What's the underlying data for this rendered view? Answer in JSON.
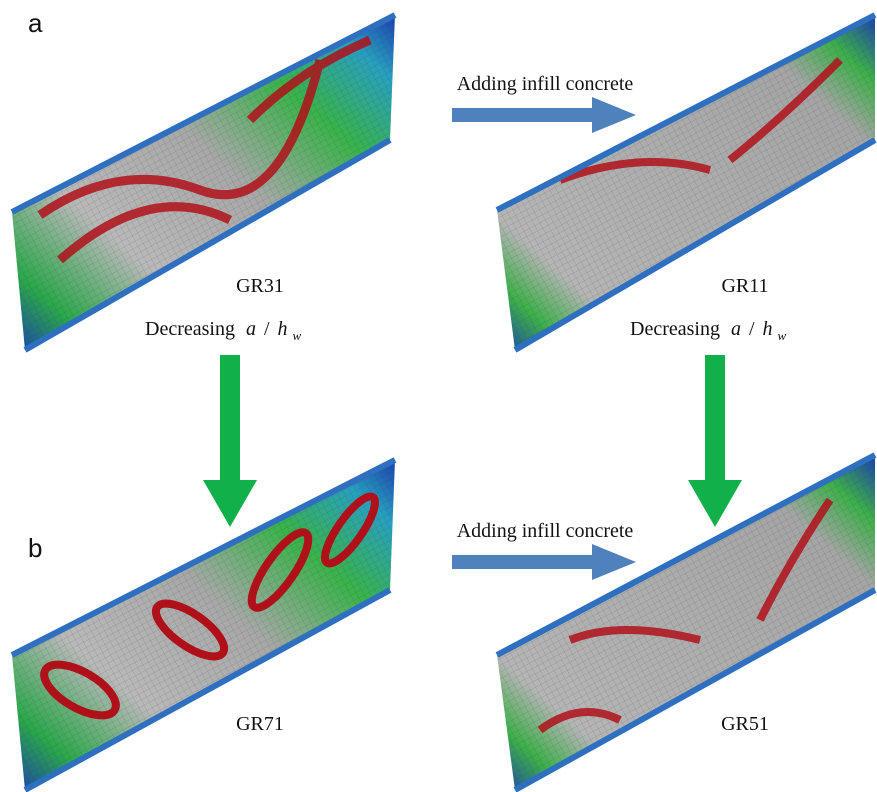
{
  "panels": [
    {
      "label": "a"
    },
    {
      "label": "b"
    }
  ],
  "models": [
    {
      "name": "GR31"
    },
    {
      "name": "GR11"
    },
    {
      "name": "GR71"
    },
    {
      "name": "GR51"
    }
  ],
  "horizontal_arrows": [
    {
      "label": "Adding infill concrete"
    },
    {
      "label": "Adding infill concrete"
    }
  ],
  "vertical_arrows": [
    {
      "label": "Decreasing",
      "symbol_a": "a",
      "slash": "/",
      "symbol_h": "h",
      "subscript": "w"
    },
    {
      "label": "Decreasing",
      "symbol_a": "a",
      "slash": "/",
      "symbol_h": "h",
      "subscript": "w"
    }
  ]
}
